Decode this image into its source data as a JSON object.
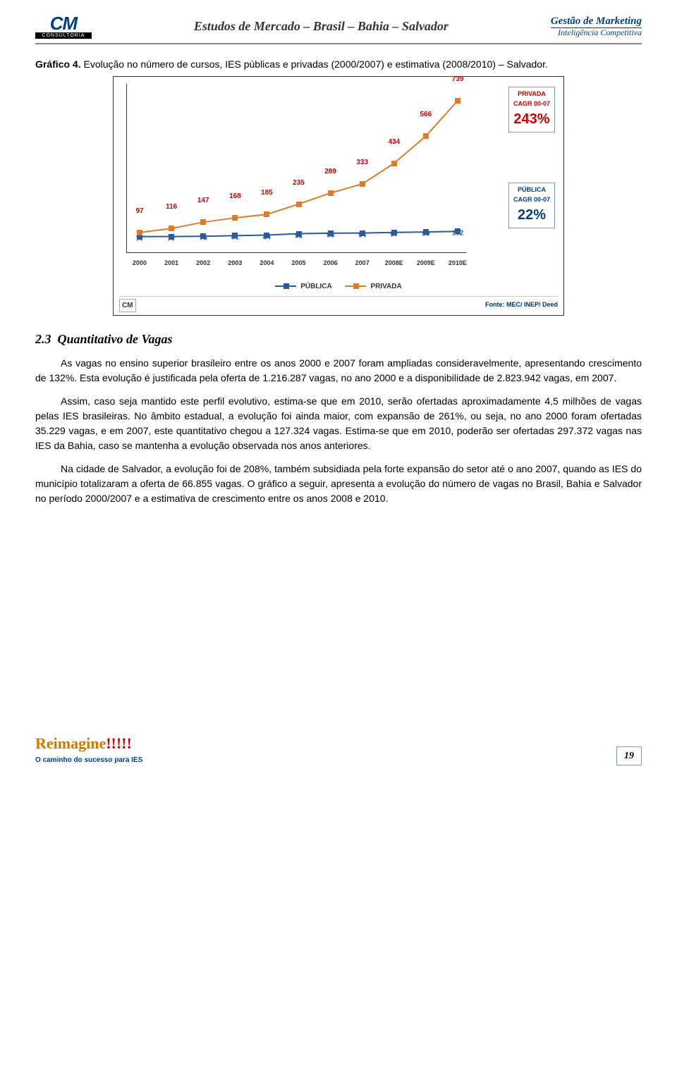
{
  "header": {
    "title": "Estudos de Mercado – Brasil – Bahia – Salvador",
    "logo_main": "CM",
    "logo_sub": "CONSULTORIA",
    "brand_top": "Gestão de Marketing",
    "brand_bottom": "Inteligência Competitiva"
  },
  "caption": {
    "label": "Gráfico 4.",
    "text": " Evolução no número de cursos, IES públicas e privadas (2000/2007) e estimativa (2008/2010) – Salvador."
  },
  "chart": {
    "type": "line",
    "x_labels": [
      "2000",
      "2001",
      "2002",
      "2003",
      "2004",
      "2005",
      "2006",
      "2007",
      "2008E",
      "2009E",
      "2010E"
    ],
    "publica": {
      "values": [
        77,
        77,
        78,
        81,
        84,
        91,
        93,
        94,
        97,
        99,
        102
      ],
      "color": "#2a5a9c",
      "legend": "PÚBLICA"
    },
    "privada": {
      "values": [
        97,
        116,
        147,
        168,
        185,
        235,
        289,
        333,
        434,
        566,
        739
      ],
      "color": "#e07b2a",
      "label_color": "#c00",
      "legend": "PRIVADA"
    },
    "ylim": [
      0,
      800
    ],
    "cagr_privada": {
      "name": "PRIVADA",
      "sub": "CAGR 00-07",
      "pct": "243%"
    },
    "cagr_publica": {
      "name": "PÚBLICA",
      "sub": "CAGR 00-07",
      "pct": "22%"
    },
    "source": "Fonte: MEC/ INEP/ Deed",
    "mini_logo": "CM"
  },
  "section": {
    "number": "2.3",
    "title": "Quantitativo de Vagas"
  },
  "paragraphs": {
    "p1": "As vagas no ensino superior brasileiro entre os anos 2000 e 2007 foram ampliadas consideravelmente, apresentando crescimento de 132%. Esta evolução é justificada pela oferta de 1.216.287 vagas, no ano 2000 e a disponibilidade de 2.823.942 vagas, em 2007.",
    "p2": "Assim, caso seja mantido este perfil evolutivo, estima-se que em 2010, serão ofertadas aproximadamente 4,5 milhões de vagas pelas IES brasileiras. No âmbito estadual, a evolução foi ainda maior, com expansão de 261%, ou seja, no ano 2000 foram ofertadas 35.229 vagas, e em 2007, este quantitativo chegou a 127.324 vagas. Estima-se que em 2010, poderão ser ofertadas 297.372 vagas nas IES da Bahia, caso se mantenha a evolução observada nos anos anteriores.",
    "p3": "Na cidade de Salvador, a evolução foi de 208%, também subsidiada pela forte expansão do setor até o ano 2007, quando as IES do município totalizaram a oferta de 66.855 vagas. O gráfico a seguir, apresenta a evolução do número de vagas no Brasil, Bahia e Salvador no período 2000/2007 e a estimativa de crescimento entre os anos 2008 e 2010."
  },
  "footer": {
    "reimagine": "Reimagine",
    "excl": "!!!!!",
    "sub": "O caminho do sucesso para IES",
    "page": "19"
  }
}
